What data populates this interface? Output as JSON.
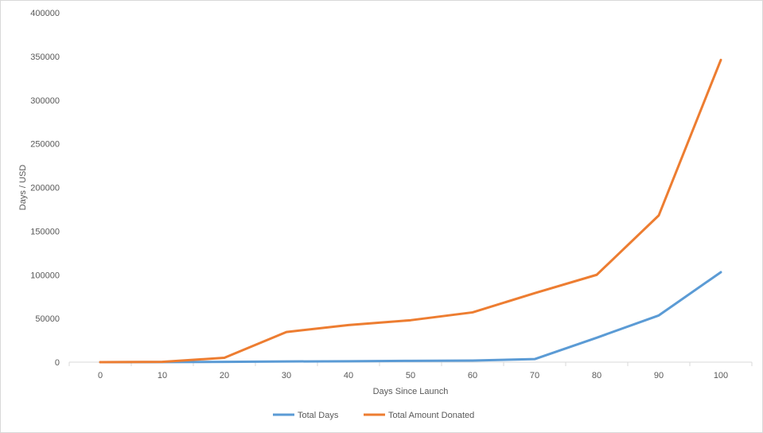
{
  "chart_data": {
    "type": "line",
    "title": "",
    "xlabel": "Days Since Launch",
    "ylabel": "Days / USD",
    "x": [
      0,
      10,
      20,
      30,
      40,
      50,
      60,
      70,
      80,
      90,
      100
    ],
    "ylim": [
      0,
      400000
    ],
    "yticks": [
      0,
      50000,
      100000,
      150000,
      200000,
      250000,
      300000,
      350000,
      400000
    ],
    "grid": false,
    "legend_position": "bottom",
    "series": [
      {
        "name": "Total Days",
        "color": "#5b9bd5",
        "values": [
          0,
          100,
          300,
          800,
          1000,
          1500,
          1800,
          3500,
          28000,
          53500,
          103000
        ]
      },
      {
        "name": "Total Amount Donated",
        "color": "#ed7d31",
        "values": [
          0,
          300,
          5000,
          34500,
          42500,
          48000,
          57000,
          79000,
          100000,
          168000,
          346000
        ]
      }
    ]
  }
}
